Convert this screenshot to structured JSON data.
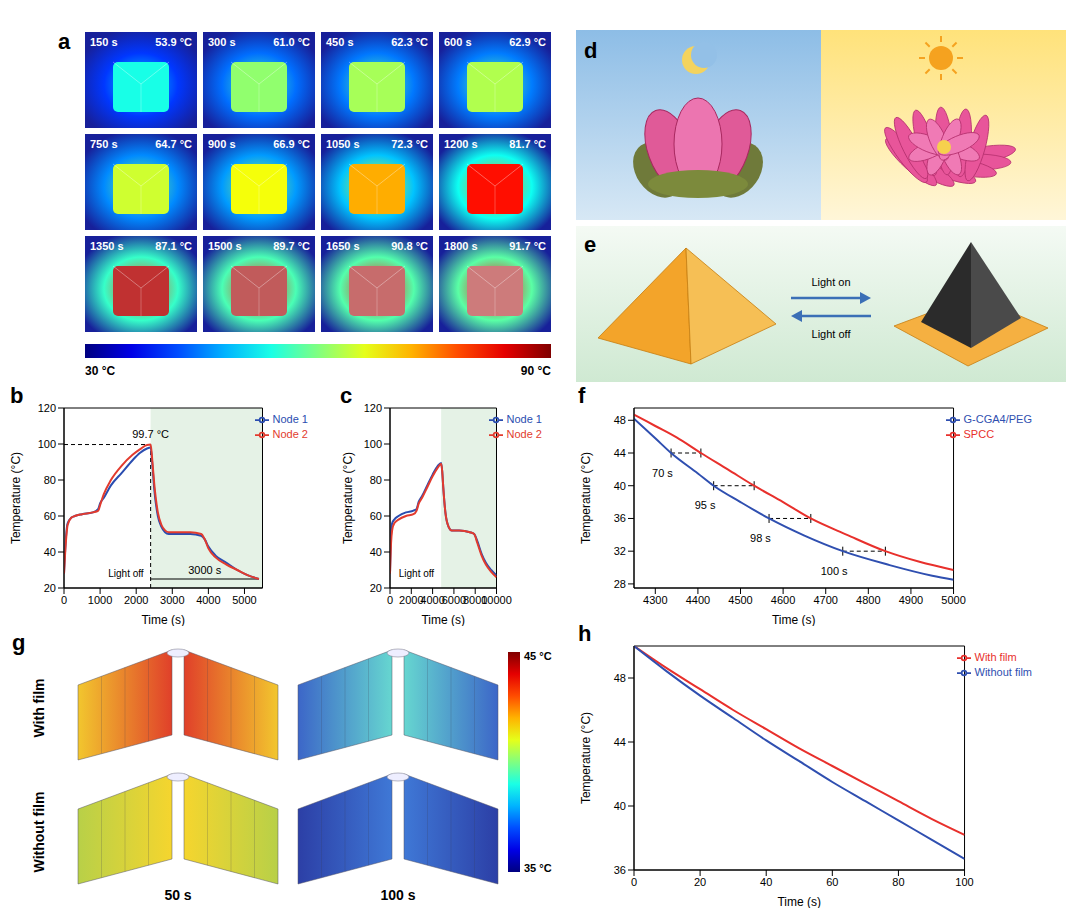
{
  "panel_a": {
    "letter": "a",
    "images": [
      {
        "time_label": "150 s",
        "temperature_label": "53.9 °C",
        "temperature": 53.9
      },
      {
        "time_label": "300 s",
        "temperature_label": "61.0 °C",
        "temperature": 61.0
      },
      {
        "time_label": "450 s",
        "temperature_label": "62.3 °C",
        "temperature": 62.3
      },
      {
        "time_label": "600 s",
        "temperature_label": "62.9 °C",
        "temperature": 62.9
      },
      {
        "time_label": "750 s",
        "temperature_label": "64.7 °C",
        "temperature": 64.7
      },
      {
        "time_label": "900 s",
        "temperature_label": "66.9 °C",
        "temperature": 66.9
      },
      {
        "time_label": "1050 s",
        "temperature_label": "72.3 °C",
        "temperature": 72.3
      },
      {
        "time_label": "1200 s",
        "temperature_label": "81.7 °C",
        "temperature": 81.7
      },
      {
        "time_label": "1350 s",
        "temperature_label": "87.1 °C",
        "temperature": 87.1
      },
      {
        "time_label": "1500 s",
        "temperature_label": "89.7 °C",
        "temperature": 89.7
      },
      {
        "time_label": "1650 s",
        "temperature_label": "90.8 °C",
        "temperature": 90.8
      },
      {
        "time_label": "1800 s",
        "temperature_label": "91.7 °C",
        "temperature": 91.7
      }
    ],
    "colorbar": {
      "min": 30,
      "max": 90,
      "min_label": "30 °C",
      "max_label": "90 °C"
    }
  },
  "panel_d": {
    "letter": "d"
  },
  "panel_e": {
    "letter": "e",
    "arrow_top": "Light on",
    "arrow_bottom": "Light off"
  },
  "panel_g": {
    "letter": "g",
    "rows": [
      "With film",
      "Without film"
    ],
    "columns": [
      "50 s",
      "100 s"
    ],
    "colorbar": {
      "max_label": "45 °C",
      "min_label": "35 °C"
    }
  },
  "chart_data": [
    {
      "panel": "b",
      "type": "line",
      "x_label": "Time (s)",
      "y_label": "Temperature (°C)",
      "xlim": [
        0,
        5500
      ],
      "xticks": [
        0,
        1000,
        2000,
        3000,
        4000,
        5000
      ],
      "ylim": [
        20,
        120
      ],
      "yticks": [
        20,
        40,
        60,
        80,
        100,
        120
      ],
      "legend": "upper right",
      "series": [
        {
          "name": "Node 1",
          "color": "#2a4db0",
          "x": [
            0,
            50,
            100,
            200,
            300,
            500,
            800,
            950,
            1000,
            1100,
            1300,
            1600,
            1900,
            2100,
            2300,
            2400,
            2450,
            2500,
            2600,
            2700,
            2800,
            2900,
            3100,
            3500,
            3800,
            3900,
            4000,
            4200,
            4500,
            4800,
            5100,
            5400
          ],
          "values": [
            28,
            47,
            56,
            59,
            60,
            61,
            62,
            64,
            67,
            70,
            77,
            84,
            91,
            95,
            97.5,
            98,
            88,
            75,
            60,
            54,
            51,
            50,
            50,
            50,
            49,
            47,
            43,
            38,
            34,
            30,
            27,
            25
          ]
        },
        {
          "name": "Node 2",
          "color": "#e23b2e",
          "x": [
            0,
            50,
            100,
            200,
            300,
            500,
            800,
            950,
            1000,
            1100,
            1300,
            1600,
            1900,
            2100,
            2300,
            2400,
            2450,
            2500,
            2600,
            2700,
            2800,
            2900,
            3100,
            3500,
            3800,
            3900,
            4000,
            4200,
            4500,
            4800,
            5100,
            5400
          ],
          "values": [
            28,
            45,
            55,
            59,
            60,
            61,
            62,
            63,
            66,
            72,
            80,
            88,
            94,
            97,
            99.5,
            99.7,
            90,
            78,
            62,
            55,
            52,
            51,
            51,
            51,
            50,
            47,
            42,
            37,
            33,
            30,
            27,
            25
          ]
        }
      ],
      "light_off": {
        "x": 2400,
        "label": "Light off"
      },
      "peak": {
        "value": 99.7,
        "label": "99.7 °C"
      },
      "interval": {
        "x0": 2400,
        "x1": 5400,
        "label": "3000 s"
      }
    },
    {
      "panel": "c",
      "type": "line",
      "x_label": "Time (s)",
      "y_label": "Temperature (°C)",
      "xlim": [
        0,
        10000
      ],
      "xticks": [
        0,
        2000,
        4000,
        6000,
        8000,
        10000
      ],
      "ylim": [
        20,
        120
      ],
      "yticks": [
        20,
        40,
        60,
        80,
        100,
        120
      ],
      "legend": "upper right",
      "series": [
        {
          "name": "Node 1",
          "color": "#2a4db0",
          "x": [
            0,
            100,
            200,
            400,
            800,
            1500,
            2200,
            2500,
            2700,
            3000,
            3500,
            4000,
            4500,
            4800,
            4900,
            5000,
            5200,
            5500,
            5800,
            6500,
            7500,
            7900,
            8200,
            8600,
            9000,
            9500,
            10000
          ],
          "values": [
            28,
            50,
            56,
            58,
            60,
            62,
            63,
            64,
            68,
            71,
            77,
            83,
            88,
            89.5,
            85,
            76,
            62,
            54,
            52,
            52,
            51,
            50,
            46,
            39,
            34,
            30,
            27
          ]
        },
        {
          "name": "Node 2",
          "color": "#e23b2e",
          "x": [
            0,
            100,
            200,
            400,
            800,
            1500,
            2200,
            2500,
            2700,
            3000,
            3500,
            4000,
            4500,
            4800,
            4900,
            5000,
            5200,
            5500,
            5800,
            6500,
            7500,
            7900,
            8200,
            8600,
            9000,
            9500,
            10000
          ],
          "values": [
            28,
            45,
            52,
            56,
            58,
            60,
            61,
            63,
            67,
            70,
            76,
            82,
            87,
            89,
            85,
            76,
            62,
            54,
            52,
            52,
            51,
            50,
            45,
            38,
            33,
            29,
            26
          ]
        }
      ],
      "light_off": {
        "x": 4800,
        "label": "Light off"
      }
    },
    {
      "panel": "f",
      "type": "line",
      "x_label": "Time (s)",
      "y_label": "Temperature (°C)",
      "xlim": [
        4250,
        5000
      ],
      "xticks": [
        4300,
        4400,
        4500,
        4600,
        4700,
        4800,
        4900,
        5000
      ],
      "ylim": [
        27.5,
        49.5
      ],
      "yticks": [
        28,
        32,
        36,
        40,
        44,
        48
      ],
      "legend": "upper right",
      "series": [
        {
          "name": "SPCC",
          "color": "#e8302c",
          "x": [
            4250,
            4300,
            4350,
            4407,
            4470,
            4532,
            4600,
            4665,
            4750,
            4840,
            4920,
            5000
          ],
          "values": [
            48.7,
            47.3,
            45.9,
            44,
            42,
            40,
            38,
            36,
            34,
            32,
            30.7,
            29.7
          ]
        },
        {
          "name": "G-CGA4/PEG",
          "color": "#2f4fb0",
          "x": [
            4250,
            4300,
            4337,
            4400,
            4437,
            4500,
            4567,
            4650,
            4740,
            4850,
            4950,
            5000
          ],
          "values": [
            48.2,
            45.8,
            44,
            41.5,
            40,
            38,
            36,
            33.9,
            32,
            30.3,
            29,
            28.5
          ]
        }
      ],
      "intervals": [
        {
          "label": "70 s",
          "y": 44,
          "x0": 4337,
          "x1": 4407
        },
        {
          "label": "95 s",
          "y": 40,
          "x0": 4437,
          "x1": 4532
        },
        {
          "label": "98 s",
          "y": 36,
          "x0": 4567,
          "x1": 4665
        },
        {
          "label": "100 s",
          "y": 32,
          "x0": 4740,
          "x1": 4840
        }
      ]
    },
    {
      "panel": "h",
      "type": "line",
      "x_label": "Time (s)",
      "y_label": "Temperature (°C)",
      "xlim": [
        0,
        100
      ],
      "xticks": [
        0,
        20,
        40,
        60,
        80,
        100
      ],
      "ylim": [
        36,
        50
      ],
      "yticks": [
        36,
        40,
        44,
        48
      ],
      "legend": "upper right",
      "series": [
        {
          "name": "With film",
          "color": "#e8302c",
          "x": [
            0,
            10,
            20,
            30,
            40,
            50,
            60,
            70,
            80,
            90,
            100
          ],
          "values": [
            50,
            48.6,
            47.3,
            46.0,
            44.8,
            43.6,
            42.5,
            41.4,
            40.3,
            39.2,
            38.2
          ]
        },
        {
          "name": "Without film",
          "color": "#2f4fb0",
          "x": [
            0,
            10,
            20,
            30,
            40,
            50,
            60,
            70,
            80,
            90,
            100
          ],
          "values": [
            50,
            48.4,
            46.9,
            45.5,
            44.1,
            42.8,
            41.5,
            40.3,
            39.1,
            37.9,
            36.7
          ]
        }
      ]
    }
  ]
}
